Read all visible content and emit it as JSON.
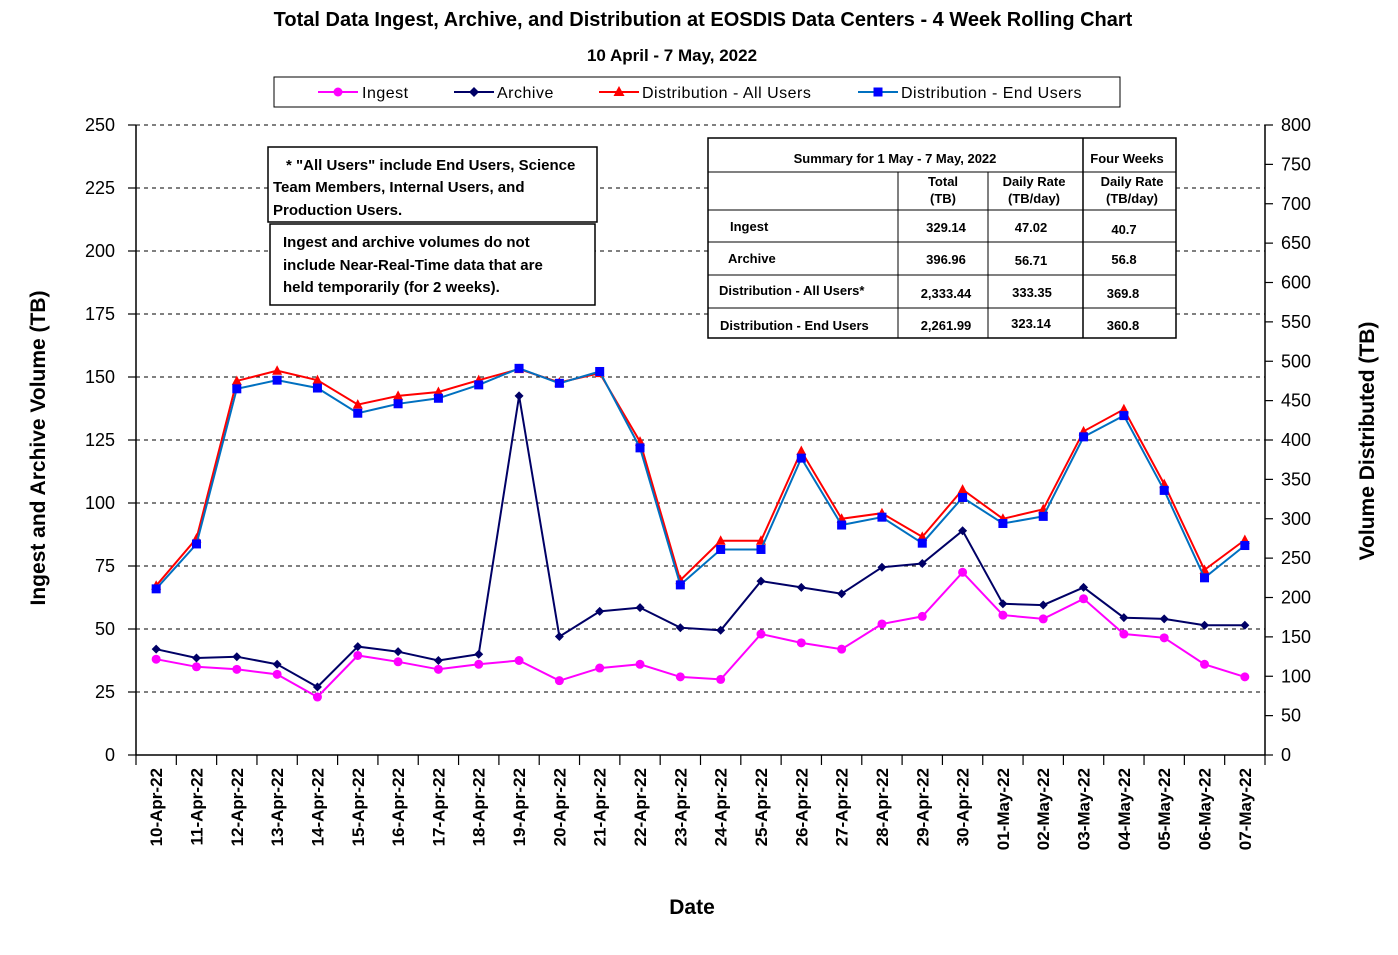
{
  "chart_data": {
    "type": "line",
    "title": "Total Data Ingest, Archive, and  Distribution at EOSDIS Data Centers - 4 Week Rolling Chart",
    "subtitle": "10  April   - 7  May,  2022",
    "xlabel": "Date",
    "ylabel_left": "Ingest and Archive Volume (TB)",
    "ylabel_right": "Volume Distributed (TB)",
    "ylim_left": [
      0,
      250
    ],
    "ylim_right": [
      0,
      800
    ],
    "yticks_left": [
      "0",
      "25",
      "50",
      "75",
      "100",
      "125",
      "150",
      "175",
      "200",
      "225",
      "250"
    ],
    "yticks_right": [
      "0",
      "50",
      "100",
      "150",
      "200",
      "250",
      "300",
      "350",
      "400",
      "450",
      "500",
      "550",
      "600",
      "650",
      "700",
      "750",
      "800"
    ],
    "grid": "horizontal dashed",
    "legend_position": "top",
    "categories": [
      "10-Apr-22",
      "11-Apr-22",
      "12-Apr-22",
      "13-Apr-22",
      "14-Apr-22",
      "15-Apr-22",
      "16-Apr-22",
      "17-Apr-22",
      "18-Apr-22",
      "19-Apr-22",
      "20-Apr-22",
      "21-Apr-22",
      "22-Apr-22",
      "23-Apr-22",
      "24-Apr-22",
      "25-Apr-22",
      "26-Apr-22",
      "27-Apr-22",
      "28-Apr-22",
      "29-Apr-22",
      "30-Apr-22",
      "01-May-22",
      "02-May-22",
      "03-May-22",
      "04-May-22",
      "05-May-22",
      "06-May-22",
      "07-May-22"
    ],
    "series": [
      {
        "name": "Ingest",
        "axis": "left",
        "color": "#ff00ff",
        "marker": "circle",
        "values": [
          38,
          35,
          34,
          32,
          23,
          39.5,
          37,
          34,
          36,
          37.5,
          29.5,
          34.5,
          36,
          31,
          30,
          48,
          44.5,
          42,
          52,
          55,
          72.5,
          55.5,
          54,
          62,
          48,
          46.5,
          36,
          31
        ]
      },
      {
        "name": "Archive",
        "axis": "left",
        "color": "#000066",
        "marker": "diamond",
        "values": [
          42,
          38.5,
          39,
          36,
          27,
          43,
          41,
          37.5,
          40,
          142.5,
          47,
          57,
          58.5,
          50.5,
          49.5,
          69,
          66.5,
          64,
          74.5,
          76,
          89,
          60,
          59.5,
          66.5,
          54.5,
          54,
          51.5,
          51.5
        ]
      },
      {
        "name": "Distribution - All Users",
        "axis": "right",
        "color": "#ff0000",
        "marker": "triangle",
        "values": [
          215,
          275,
          475,
          488,
          476,
          445,
          456,
          461,
          476,
          490,
          473,
          485,
          398,
          222,
          272,
          272,
          386,
          300,
          307,
          277,
          337,
          300,
          312,
          411,
          439,
          344,
          235,
          273
        ]
      },
      {
        "name": "Distribution - End Users",
        "axis": "right",
        "color": "#0070c0",
        "marker": "square",
        "values": [
          211,
          268,
          465,
          476,
          466,
          434,
          446,
          453,
          470,
          491,
          472,
          487,
          390,
          216,
          261,
          261,
          377,
          292,
          302,
          269,
          327,
          294,
          303,
          404,
          431,
          336,
          225,
          266
        ]
      }
    ]
  },
  "notes": {
    "all_users_lines": [
      "* \"All Users\" include End Users, Science",
      "Team Members,  Internal Users, and",
      "Production Users."
    ],
    "nrt_lines": [
      "Ingest and archive volumes do not",
      "include Near-Real-Time data that are",
      "held temporarily (for 2 weeks)."
    ]
  },
  "summary_table": {
    "title": "Summary  for  1  May   -  7  May,  2022",
    "four_weeks_header": "Four Weeks",
    "total_header": [
      "Total",
      "(TB)"
    ],
    "daily_header": [
      "Daily Rate",
      "(TB/day)"
    ],
    "four_daily_header": [
      "Daily Rate",
      "(TB/day)"
    ],
    "rows": [
      {
        "label": "Ingest",
        "total": "329.14",
        "daily": "47.02",
        "four": "40.7"
      },
      {
        "label": "Archive",
        "total": "396.96",
        "daily": "56.71",
        "four": "56.8"
      },
      {
        "label": "Distribution - All Users*",
        "total": "2,333.44",
        "daily": "333.35",
        "four": "369.8"
      },
      {
        "label": "Distribution - End Users",
        "total": "2,261.99",
        "daily": "323.14",
        "four": "360.8"
      }
    ]
  }
}
